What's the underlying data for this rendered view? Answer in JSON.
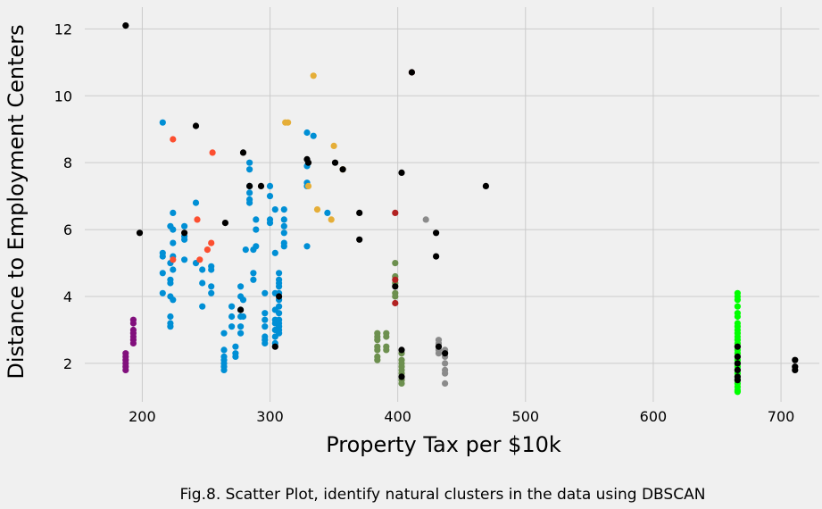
{
  "chart_data": {
    "type": "scatter",
    "title": "",
    "xlabel": "Property Tax per $10k",
    "ylabel": "Distance to Employment Centers",
    "caption": "Fig.8. Scatter Plot, identify natural clusters in the data using DBSCAN",
    "xlim": [
      155,
      730
    ],
    "ylim": [
      0.85,
      12.65
    ],
    "xticks": [
      200,
      300,
      400,
      500,
      600,
      700
    ],
    "yticks": [
      2,
      4,
      6,
      8,
      10,
      12
    ],
    "grid": true,
    "legend": "none",
    "background": "#f0f0f0",
    "series": [
      {
        "color": "#008fd5",
        "points": [
          [
            216,
            9.2
          ],
          [
            216,
            5.3
          ],
          [
            216,
            5.2
          ],
          [
            216,
            4.7
          ],
          [
            216,
            4.1
          ],
          [
            222,
            6.1
          ],
          [
            222,
            5.0
          ],
          [
            222,
            4.5
          ],
          [
            222,
            4.4
          ],
          [
            222,
            4.0
          ],
          [
            222,
            3.4
          ],
          [
            222,
            3.2
          ],
          [
            222,
            3.1
          ],
          [
            224,
            6.5
          ],
          [
            224,
            6.0
          ],
          [
            224,
            5.6
          ],
          [
            224,
            5.2
          ],
          [
            224,
            4.8
          ],
          [
            224,
            3.9
          ],
          [
            233,
            6.1
          ],
          [
            233,
            5.8
          ],
          [
            233,
            5.7
          ],
          [
            233,
            5.1
          ],
          [
            242,
            6.8
          ],
          [
            242,
            5.0
          ],
          [
            247,
            4.8
          ],
          [
            247,
            4.4
          ],
          [
            247,
            3.7
          ],
          [
            254,
            4.9
          ],
          [
            254,
            4.8
          ],
          [
            254,
            4.3
          ],
          [
            254,
            4.1
          ],
          [
            264,
            2.9
          ],
          [
            264,
            2.4
          ],
          [
            264,
            2.2
          ],
          [
            264,
            2.1
          ],
          [
            264,
            2.0
          ],
          [
            264,
            1.9
          ],
          [
            264,
            1.8
          ],
          [
            270,
            3.7
          ],
          [
            270,
            3.4
          ],
          [
            270,
            3.1
          ],
          [
            273,
            2.5
          ],
          [
            273,
            2.3
          ],
          [
            273,
            2.2
          ],
          [
            277,
            4.3
          ],
          [
            277,
            4.0
          ],
          [
            277,
            3.6
          ],
          [
            277,
            3.4
          ],
          [
            277,
            3.1
          ],
          [
            277,
            2.9
          ],
          [
            279,
            3.9
          ],
          [
            279,
            3.4
          ],
          [
            281,
            5.4
          ],
          [
            284,
            8.0
          ],
          [
            284,
            7.8
          ],
          [
            284,
            7.3
          ],
          [
            284,
            7.1
          ],
          [
            284,
            6.9
          ],
          [
            284,
            6.8
          ],
          [
            287,
            5.4
          ],
          [
            287,
            4.7
          ],
          [
            287,
            4.5
          ],
          [
            289,
            6.3
          ],
          [
            289,
            6.0
          ],
          [
            289,
            5.5
          ],
          [
            296,
            4.1
          ],
          [
            296,
            3.5
          ],
          [
            296,
            3.3
          ],
          [
            296,
            3.1
          ],
          [
            296,
            2.8
          ],
          [
            296,
            2.7
          ],
          [
            296,
            2.6
          ],
          [
            300,
            7.3
          ],
          [
            300,
            7.0
          ],
          [
            300,
            6.3
          ],
          [
            300,
            6.2
          ],
          [
            304,
            6.6
          ],
          [
            304,
            5.3
          ],
          [
            304,
            4.1
          ],
          [
            304,
            3.6
          ],
          [
            304,
            3.3
          ],
          [
            304,
            3.2
          ],
          [
            304,
            3.0
          ],
          [
            304,
            2.8
          ],
          [
            304,
            2.6
          ],
          [
            307,
            4.7
          ],
          [
            307,
            4.5
          ],
          [
            307,
            4.4
          ],
          [
            307,
            4.3
          ],
          [
            307,
            4.1
          ],
          [
            307,
            3.9
          ],
          [
            307,
            3.7
          ],
          [
            307,
            3.5
          ],
          [
            307,
            3.3
          ],
          [
            307,
            3.2
          ],
          [
            307,
            3.1
          ],
          [
            307,
            3.0
          ],
          [
            307,
            2.9
          ],
          [
            311,
            6.6
          ],
          [
            311,
            6.3
          ],
          [
            311,
            6.1
          ],
          [
            311,
            5.9
          ],
          [
            311,
            5.6
          ],
          [
            311,
            5.5
          ],
          [
            329,
            8.9
          ],
          [
            329,
            7.9
          ],
          [
            329,
            7.4
          ],
          [
            329,
            7.3
          ],
          [
            329,
            5.5
          ],
          [
            334,
            8.8
          ],
          [
            345,
            6.5
          ]
        ]
      },
      {
        "color": "#fc4f30",
        "points": [
          [
            224,
            8.7
          ],
          [
            224,
            5.1
          ],
          [
            243,
            6.3
          ],
          [
            245,
            5.1
          ],
          [
            251,
            5.4
          ],
          [
            254,
            5.6
          ],
          [
            255,
            8.3
          ]
        ]
      },
      {
        "color": "#e5ae38",
        "points": [
          [
            312,
            9.2
          ],
          [
            314,
            9.2
          ],
          [
            330,
            7.3
          ],
          [
            334,
            10.6
          ],
          [
            337,
            6.6
          ],
          [
            348,
            6.3
          ],
          [
            350,
            8.5
          ],
          [
            357,
            7.8
          ]
        ]
      },
      {
        "color": "#810f7c",
        "points": [
          [
            187,
            2.3
          ],
          [
            187,
            2.2
          ],
          [
            187,
            2.1
          ],
          [
            187,
            2.0
          ],
          [
            187,
            1.9
          ],
          [
            187,
            1.8
          ],
          [
            193,
            3.3
          ],
          [
            193,
            3.2
          ],
          [
            193,
            3.0
          ],
          [
            193,
            2.9
          ],
          [
            193,
            2.8
          ],
          [
            193,
            2.7
          ],
          [
            193,
            2.6
          ]
        ]
      },
      {
        "color": "#6d904f",
        "points": [
          [
            384,
            2.9
          ],
          [
            384,
            2.8
          ],
          [
            384,
            2.7
          ],
          [
            384,
            2.5
          ],
          [
            384,
            2.4
          ],
          [
            384,
            2.2
          ],
          [
            384,
            2.1
          ],
          [
            391,
            2.9
          ],
          [
            391,
            2.8
          ],
          [
            391,
            2.5
          ],
          [
            391,
            2.4
          ],
          [
            398,
            5.0
          ],
          [
            398,
            4.6
          ],
          [
            398,
            4.4
          ],
          [
            398,
            4.1
          ],
          [
            398,
            4.0
          ],
          [
            403,
            2.3
          ],
          [
            403,
            2.1
          ],
          [
            403,
            2.0
          ],
          [
            403,
            1.9
          ],
          [
            403,
            1.8
          ],
          [
            403,
            1.7
          ],
          [
            403,
            1.6
          ],
          [
            403,
            1.5
          ],
          [
            403,
            1.4
          ]
        ]
      },
      {
        "color": "#8b8b8b",
        "points": [
          [
            422,
            6.3
          ],
          [
            432,
            2.7
          ],
          [
            432,
            2.6
          ],
          [
            432,
            2.4
          ],
          [
            432,
            2.3
          ],
          [
            437,
            2.4
          ],
          [
            437,
            2.2
          ],
          [
            437,
            2.0
          ],
          [
            437,
            1.8
          ],
          [
            437,
            1.7
          ],
          [
            437,
            1.4
          ]
        ]
      },
      {
        "color": "#b22222",
        "points": [
          [
            398,
            6.5
          ],
          [
            398,
            4.5
          ],
          [
            398,
            3.8
          ],
          [
            411,
            10.7
          ]
        ]
      },
      {
        "color": "#00ff00",
        "points": [
          [
            666,
            4.1
          ],
          [
            666,
            4.0
          ],
          [
            666,
            3.9
          ],
          [
            666,
            3.7
          ],
          [
            666,
            3.5
          ],
          [
            666,
            3.4
          ],
          [
            666,
            3.2
          ],
          [
            666,
            3.1
          ],
          [
            666,
            3.0
          ],
          [
            666,
            2.9
          ],
          [
            666,
            2.8
          ],
          [
            666,
            2.7
          ],
          [
            666,
            2.6
          ],
          [
            666,
            2.5
          ],
          [
            666,
            2.4
          ],
          [
            666,
            2.3
          ],
          [
            666,
            2.2
          ],
          [
            666,
            2.1
          ],
          [
            666,
            2.0
          ],
          [
            666,
            1.9
          ],
          [
            666,
            1.8
          ],
          [
            666,
            1.7
          ],
          [
            666,
            1.6
          ],
          [
            666,
            1.5
          ],
          [
            666,
            1.4
          ],
          [
            666,
            1.3
          ],
          [
            666,
            1.2
          ],
          [
            666,
            1.15
          ]
        ]
      },
      {
        "color": "#000000",
        "points": [
          [
            187,
            12.1
          ],
          [
            198,
            5.9
          ],
          [
            233,
            5.9
          ],
          [
            242,
            9.1
          ],
          [
            265,
            6.2
          ],
          [
            277,
            3.6
          ],
          [
            279,
            8.3
          ],
          [
            284,
            7.3
          ],
          [
            293,
            7.3
          ],
          [
            304,
            2.5
          ],
          [
            307,
            4.0
          ],
          [
            329,
            8.1
          ],
          [
            330,
            8.0
          ],
          [
            351,
            8.0
          ],
          [
            357,
            7.8
          ],
          [
            370,
            6.5
          ],
          [
            370,
            5.7
          ],
          [
            398,
            4.3
          ],
          [
            403,
            7.7
          ],
          [
            403,
            2.4
          ],
          [
            403,
            1.6
          ],
          [
            411,
            10.7
          ],
          [
            430,
            5.9
          ],
          [
            430,
            5.2
          ],
          [
            432,
            2.5
          ],
          [
            437,
            2.3
          ],
          [
            469,
            7.3
          ],
          [
            666,
            2.5
          ],
          [
            666,
            2.2
          ],
          [
            666,
            2.0
          ],
          [
            666,
            1.8
          ],
          [
            666,
            1.6
          ],
          [
            666,
            1.5
          ],
          [
            711,
            2.1
          ],
          [
            711,
            1.9
          ],
          [
            711,
            1.8
          ]
        ]
      }
    ]
  }
}
